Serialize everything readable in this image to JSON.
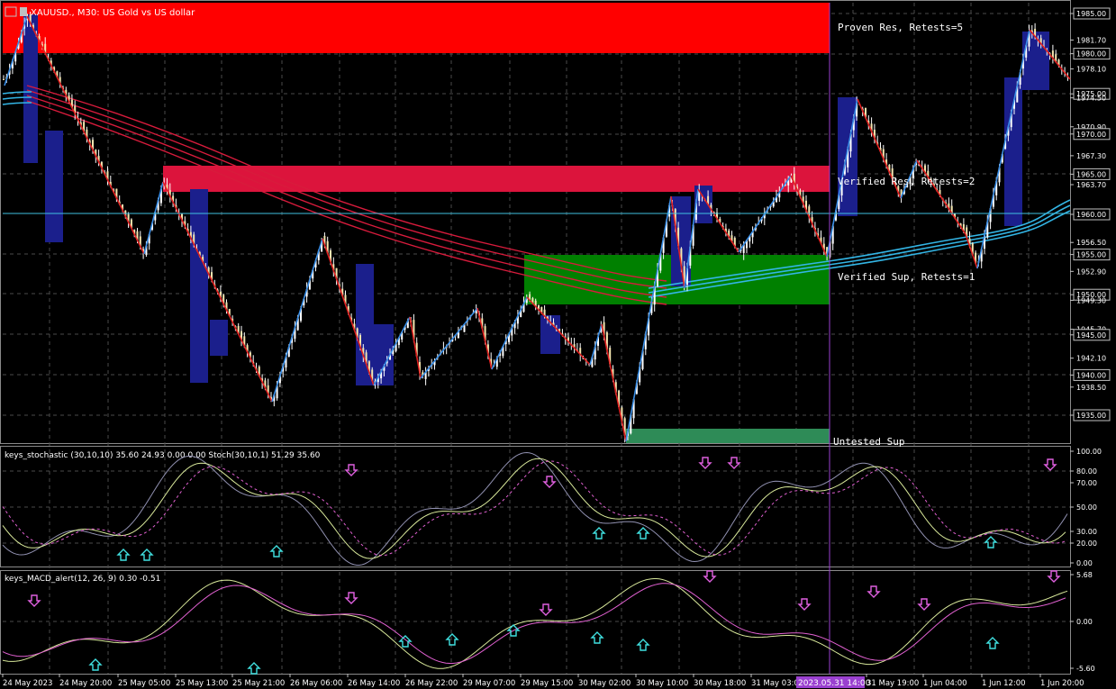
{
  "window": {
    "symbol_title": "XAUUSD., M30: US Gold vs US dollar",
    "colors": {
      "background": "#000000",
      "grid": "#4a4a4a",
      "bull": "#ffffff",
      "bear": "#ffffff",
      "zigzag_up": "#3a8ee6",
      "zigzag_down": "#e02020"
    }
  },
  "price_axis": {
    "labels": [
      "1985.00",
      "1981.70",
      "1980.00",
      "1978.10",
      "1975.00",
      "1974.50",
      "1970.90",
      "1970.00",
      "1967.30",
      "1965.00",
      "1963.70",
      "1960.00",
      "1956.50",
      "1955.00",
      "1952.90",
      "1950.00",
      "1949.30",
      "1945.70",
      "1945.00",
      "1942.10",
      "1940.00",
      "1938.50",
      "1935.00"
    ]
  },
  "zones": {
    "proven_res_label": "Proven Res, Retests=5",
    "verified_res_label": "Verified Res, Retests=2",
    "verified_sup_label": "Verified Sup, Retests=1",
    "untested_sup_label": "Untested Sup"
  },
  "stochastic": {
    "title": "keys_stochastic (30,10,10) 35.60 24.93 0.00 0.00 Stoch(30,10,1) 51.29 35.60",
    "levels": [
      "100.00",
      "80.00",
      "70.00",
      "50.00",
      "30.00",
      "20.00",
      "0.00"
    ]
  },
  "macd": {
    "title": "keys_MACD_alert(12, 26, 9) 0.30 -0.51",
    "levels": [
      "5.68",
      "0.00",
      "-5.60"
    ]
  },
  "time_axis": {
    "labels": [
      "24 May 2023",
      "24 May 20:00",
      "25 May 05:00",
      "25 May 13:00",
      "25 May 21:00",
      "26 May 06:00",
      "26 May 14:00",
      "26 May 22:00",
      "29 May 07:00",
      "29 May 15:00",
      "30 May 02:00",
      "30 May 10:00",
      "30 May 18:00",
      "31 May 03:00",
      "31 May 19:00",
      "1 Jun 04:00",
      "1 Jun 12:00",
      "1 Jun 20:00"
    ],
    "cursor_label": "2023.05.31 14:00"
  }
}
